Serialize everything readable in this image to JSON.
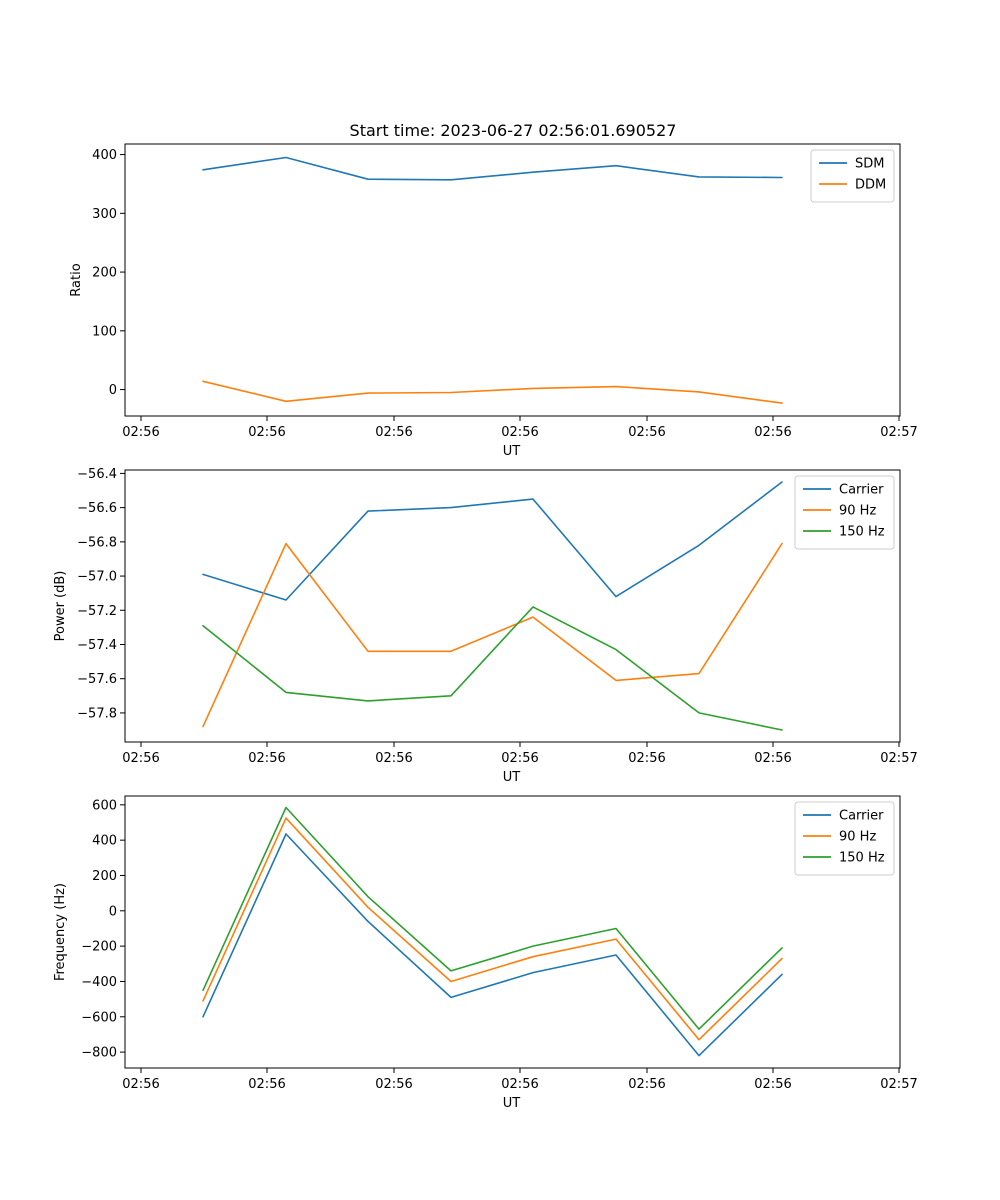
{
  "figure": {
    "title": "Start time: 2023-06-27 02:56:01.690527"
  },
  "chart_data": [
    {
      "type": "line",
      "xlabel": "UT",
      "ylabel": "Ratio",
      "x_tick_labels": [
        "02:56",
        "02:56",
        "02:56",
        "02:56",
        "02:56",
        "02:56",
        "02:56",
        "02:57"
      ],
      "y_ticks": [
        0,
        100,
        200,
        300,
        400
      ],
      "y_tick_labels": [
        "0",
        "100",
        "200",
        "300",
        "400"
      ],
      "ylim": [
        -45,
        418
      ],
      "legend_position": "top-right",
      "grid": false,
      "series": [
        {
          "name": "SDM",
          "color": "#1f77b4",
          "values": [
            374,
            395,
            358,
            357,
            370,
            381,
            362,
            361
          ]
        },
        {
          "name": "DDM",
          "color": "#ff7f0e",
          "values": [
            14,
            -20,
            -6,
            -5,
            2,
            5,
            -4,
            -23
          ]
        }
      ]
    },
    {
      "type": "line",
      "xlabel": "UT",
      "ylabel": "Power (dB)",
      "x_tick_labels": [
        "02:56",
        "02:56",
        "02:56",
        "02:56",
        "02:56",
        "02:56",
        "02:56",
        "02:57"
      ],
      "y_ticks": [
        -57.8,
        -57.6,
        -57.4,
        -57.2,
        -57.0,
        -56.8,
        -56.6,
        -56.4
      ],
      "y_tick_labels": [
        "−57.8",
        "−57.6",
        "−57.4",
        "−57.2",
        "−57.0",
        "−56.8",
        "−56.6",
        "−56.4"
      ],
      "ylim": [
        -57.97,
        -56.38
      ],
      "legend_position": "top-right",
      "grid": false,
      "series": [
        {
          "name": "Carrier",
          "color": "#1f77b4",
          "values": [
            -56.99,
            -57.14,
            -56.62,
            -56.6,
            -56.55,
            -57.12,
            -56.82,
            -56.45
          ]
        },
        {
          "name": "90 Hz",
          "color": "#ff7f0e",
          "values": [
            -57.88,
            -56.81,
            -57.44,
            -57.44,
            -57.24,
            -57.61,
            -57.57,
            -56.81
          ]
        },
        {
          "name": "150 Hz",
          "color": "#2ca02c",
          "values": [
            -57.29,
            -57.68,
            -57.73,
            -57.7,
            -57.18,
            -57.43,
            -57.8,
            -57.9
          ]
        }
      ]
    },
    {
      "type": "line",
      "xlabel": "UT",
      "ylabel": "Frequency (Hz)",
      "x_tick_labels": [
        "02:56",
        "02:56",
        "02:56",
        "02:56",
        "02:56",
        "02:56",
        "02:56",
        "02:57"
      ],
      "y_ticks": [
        -800,
        -600,
        -400,
        -200,
        0,
        200,
        400,
        600
      ],
      "y_tick_labels": [
        "−800",
        "−600",
        "−400",
        "−200",
        "0",
        "200",
        "400",
        "600"
      ],
      "ylim": [
        -890,
        650
      ],
      "legend_position": "top-right",
      "grid": false,
      "series": [
        {
          "name": "Carrier",
          "color": "#1f77b4",
          "values": [
            -600,
            435,
            -60,
            -490,
            -350,
            -250,
            -820,
            -360
          ]
        },
        {
          "name": "90 Hz",
          "color": "#ff7f0e",
          "values": [
            -510,
            525,
            20,
            -400,
            -260,
            -160,
            -730,
            -270
          ]
        },
        {
          "name": "150 Hz",
          "color": "#2ca02c",
          "values": [
            -450,
            585,
            80,
            -340,
            -200,
            -100,
            -670,
            -210
          ]
        }
      ]
    }
  ]
}
